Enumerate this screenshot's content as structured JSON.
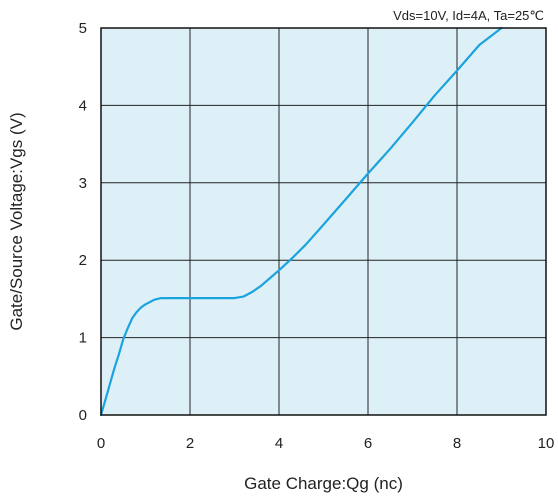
{
  "chart_data": {
    "type": "line",
    "annotation": "Vds=10V, Id=4A, Ta=25℃",
    "xlabel": "Gate Charge:Qg  (nc)",
    "ylabel": "Gate/Source Voltage:Vgs  (V)",
    "xlim": [
      0,
      10
    ],
    "ylim": [
      0,
      5
    ],
    "x_ticks": [
      "0",
      "2",
      "4",
      "6",
      "8",
      "10"
    ],
    "y_ticks": [
      "0",
      "1",
      "2",
      "3",
      "4",
      "5"
    ],
    "grid": true,
    "plot_background": "#ddf0f8",
    "line_color": "#1aa3dd",
    "series": [
      {
        "x": [
          0,
          0.1,
          0.2,
          0.3,
          0.4,
          0.5,
          0.6,
          0.7,
          0.8,
          0.9,
          1.0,
          1.1,
          1.2,
          1.35,
          1.5,
          2.0,
          2.5,
          3.0,
          3.2,
          3.4,
          3.6,
          3.8,
          4.0,
          4.3,
          4.6,
          5.0,
          5.5,
          6.0,
          6.5,
          7.0,
          7.5,
          8.0,
          8.5,
          9.0,
          9.1
        ],
        "y": [
          0,
          0.2,
          0.4,
          0.6,
          0.78,
          0.98,
          1.12,
          1.25,
          1.33,
          1.39,
          1.43,
          1.46,
          1.49,
          1.51,
          1.51,
          1.51,
          1.51,
          1.51,
          1.53,
          1.59,
          1.67,
          1.77,
          1.87,
          2.03,
          2.2,
          2.46,
          2.79,
          3.12,
          3.44,
          3.78,
          4.13,
          4.45,
          4.78,
          5.0,
          5.05
        ]
      }
    ]
  }
}
